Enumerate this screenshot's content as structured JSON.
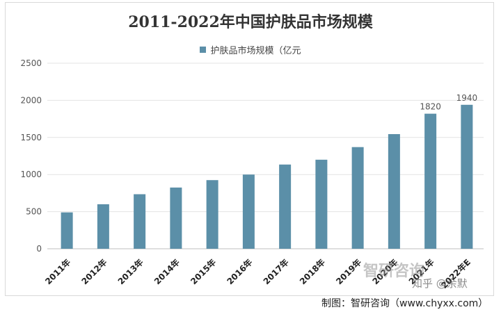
{
  "chart_data": {
    "type": "bar",
    "title": "2011-2022年中国护肤品市场规模",
    "categories": [
      "2011年",
      "2012年",
      "2013年",
      "2014年",
      "2015年",
      "2016年",
      "2017年",
      "2018年",
      "2019年",
      "2020年",
      "2021年",
      "2022年E"
    ],
    "series": [
      {
        "name": "护肤品市场规模（亿元",
        "values": [
          490,
          600,
          735,
          825,
          925,
          1000,
          1135,
          1200,
          1370,
          1545,
          1820,
          1940
        ]
      }
    ],
    "data_labels": {
      "2021年": "1820",
      "2022年E": "1940"
    },
    "ylim": [
      0,
      2500
    ],
    "yticks": [
      "0",
      "500",
      "1000",
      "1500",
      "2000",
      "2500"
    ],
    "grid": "horizontal",
    "legend_position": "top",
    "bar_color": "#5b8fa8"
  },
  "credit": "制图：智研咨询（www.chyxx.com）",
  "watermark": "智研咨询",
  "zhihu_mark": "知乎 @余默"
}
